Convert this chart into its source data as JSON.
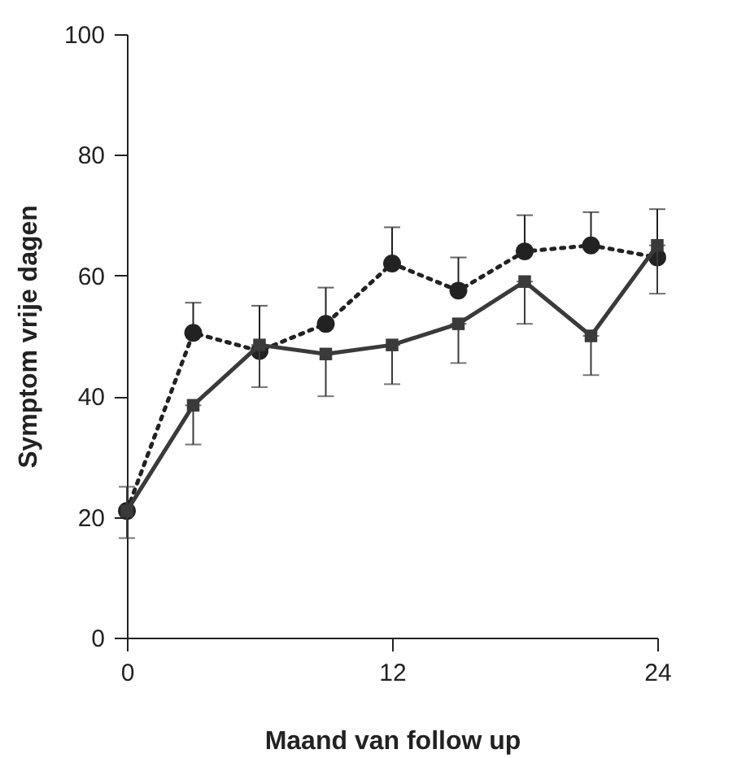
{
  "chart_data": {
    "type": "line",
    "xlabel": "Maand van follow up",
    "ylabel": "Symptom vrije dagen",
    "x": [
      0,
      3,
      6,
      9,
      12,
      15,
      18,
      21,
      24
    ],
    "series": [
      {
        "color": "#222222",
        "marker": "circle",
        "line_style": "dotted",
        "values": [
          21,
          50.5,
          47.5,
          52,
          62,
          57.5,
          64,
          65,
          63
        ],
        "errors": [
          null,
          [
            50.5,
            55.5
          ],
          [
            47.5,
            55
          ],
          [
            52,
            58
          ],
          [
            62,
            68
          ],
          [
            57.5,
            63
          ],
          [
            64,
            70
          ],
          [
            65,
            70.5
          ],
          [
            63,
            71
          ]
        ]
      },
      {
        "color": "#3a3a3a",
        "marker": "square",
        "line_style": "solid",
        "values": [
          21,
          38.5,
          48.5,
          47,
          48.5,
          52,
          59,
          50,
          65
        ],
        "errors": [
          [
            16.5,
            25
          ],
          [
            32,
            38.5
          ],
          [
            41.5,
            48.5
          ],
          [
            40,
            47
          ],
          [
            42,
            48.5
          ],
          [
            45.5,
            52
          ],
          [
            52,
            59
          ],
          [
            43.5,
            50
          ],
          [
            57,
            65
          ]
        ]
      }
    ],
    "xlim": [
      0,
      24
    ],
    "xticks": [
      0,
      12,
      24
    ],
    "ylim": [
      0,
      100
    ],
    "yticks": [
      0,
      20,
      40,
      60,
      80,
      100
    ]
  }
}
